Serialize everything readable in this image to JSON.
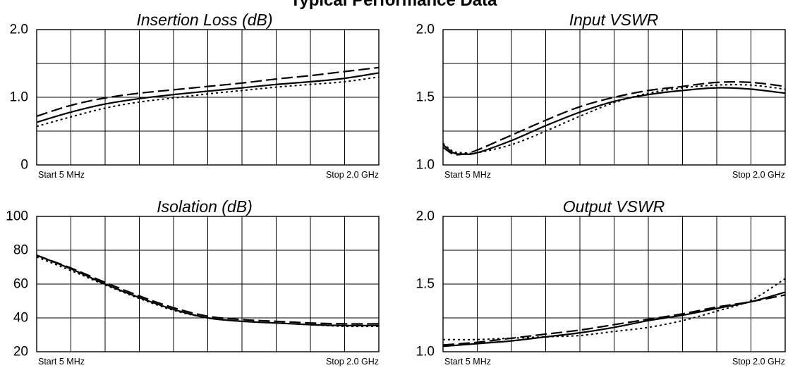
{
  "figure_title": "Typical Performance Data",
  "colors": {
    "background": "#ffffff",
    "grid": "#000000",
    "trace": "#000000"
  },
  "chart_data": [
    {
      "type": "line",
      "title": "Insertion Loss (dB)",
      "ylim": [
        0,
        2.0
      ],
      "yticks": [
        {
          "value": 0,
          "label": "0"
        },
        {
          "value": 1.0,
          "label": "1.0"
        },
        {
          "value": 2.0,
          "label": "2.0"
        }
      ],
      "xlim": [
        0,
        10
      ],
      "x_start_label": "Start 5 MHz",
      "x_stop_label": "Stop 2.0 GHz",
      "grid": true,
      "x": [
        0,
        1,
        2,
        3,
        4,
        5,
        6,
        7,
        8,
        9,
        10
      ],
      "series": [
        {
          "style": "solid",
          "values": [
            0.63,
            0.78,
            0.9,
            0.98,
            1.04,
            1.09,
            1.14,
            1.19,
            1.23,
            1.28,
            1.36
          ]
        },
        {
          "style": "dashed",
          "values": [
            0.72,
            0.88,
            0.99,
            1.06,
            1.11,
            1.16,
            1.21,
            1.27,
            1.32,
            1.38,
            1.44
          ]
        },
        {
          "style": "dotted",
          "values": [
            0.57,
            0.71,
            0.84,
            0.93,
            0.99,
            1.05,
            1.1,
            1.15,
            1.19,
            1.23,
            1.3
          ]
        }
      ]
    },
    {
      "type": "line",
      "title": "Input VSWR",
      "ylim": [
        1.0,
        2.0
      ],
      "yticks": [
        {
          "value": 1.0,
          "label": "1.0"
        },
        {
          "value": 1.5,
          "label": "1.5"
        },
        {
          "value": 2.0,
          "label": "2.0"
        }
      ],
      "xlim": [
        0,
        10
      ],
      "x_start_label": "Start 5 MHz",
      "x_stop_label": "Stop 2.0 GHz",
      "grid": true,
      "x": [
        0,
        0.3,
        0.6,
        1,
        2,
        3,
        4,
        5,
        6,
        7,
        8,
        9,
        10
      ],
      "series": [
        {
          "style": "solid",
          "values": [
            1.15,
            1.09,
            1.08,
            1.09,
            1.18,
            1.29,
            1.39,
            1.47,
            1.52,
            1.55,
            1.57,
            1.56,
            1.53
          ]
        },
        {
          "style": "dashed",
          "values": [
            1.13,
            1.08,
            1.08,
            1.11,
            1.22,
            1.33,
            1.43,
            1.5,
            1.55,
            1.58,
            1.61,
            1.61,
            1.58
          ]
        },
        {
          "style": "dotted",
          "values": [
            1.16,
            1.1,
            1.09,
            1.09,
            1.15,
            1.25,
            1.36,
            1.46,
            1.53,
            1.57,
            1.59,
            1.59,
            1.56
          ]
        }
      ]
    },
    {
      "type": "line",
      "title": "Isolation (dB)",
      "ylim": [
        20,
        100
      ],
      "yticks": [
        {
          "value": 20,
          "label": "20"
        },
        {
          "value": 40,
          "label": "40"
        },
        {
          "value": 60,
          "label": "60"
        },
        {
          "value": 80,
          "label": "80"
        },
        {
          "value": 100,
          "label": "100"
        }
      ],
      "xlim": [
        0,
        10
      ],
      "x_start_label": "Start 5 MHz",
      "x_stop_label": "Stop 2.0 GHz",
      "grid": true,
      "x": [
        0,
        1,
        2,
        3,
        4,
        5,
        6,
        7,
        8,
        9,
        10
      ],
      "series": [
        {
          "style": "solid",
          "values": [
            77,
            69,
            60,
            52,
            45,
            40,
            38,
            37,
            36,
            35.5,
            35.5
          ]
        },
        {
          "style": "dashed",
          "values": [
            77,
            69.5,
            61,
            53,
            46,
            41,
            39,
            38,
            37,
            36.5,
            36.5
          ]
        },
        {
          "style": "dotted",
          "values": [
            76,
            68,
            59.5,
            51.5,
            44.5,
            40,
            38,
            37,
            36,
            35,
            35
          ]
        }
      ]
    },
    {
      "type": "line",
      "title": "Output VSWR",
      "ylim": [
        1.0,
        2.0
      ],
      "yticks": [
        {
          "value": 1.0,
          "label": "1.0"
        },
        {
          "value": 1.5,
          "label": "1.5"
        },
        {
          "value": 2.0,
          "label": "2.0"
        }
      ],
      "xlim": [
        0,
        10
      ],
      "x_start_label": "Start 5 MHz",
      "x_stop_label": "Stop 2.0 GHz",
      "grid": true,
      "x": [
        0,
        1,
        2,
        3,
        4,
        5,
        6,
        7,
        8,
        9,
        10
      ],
      "series": [
        {
          "style": "solid",
          "values": [
            1.04,
            1.06,
            1.08,
            1.11,
            1.14,
            1.18,
            1.23,
            1.27,
            1.32,
            1.37,
            1.44
          ]
        },
        {
          "style": "dashed",
          "values": [
            1.05,
            1.07,
            1.1,
            1.13,
            1.16,
            1.2,
            1.24,
            1.28,
            1.33,
            1.37,
            1.42
          ]
        },
        {
          "style": "dotted",
          "values": [
            1.09,
            1.09,
            1.1,
            1.11,
            1.12,
            1.15,
            1.18,
            1.23,
            1.3,
            1.38,
            1.54
          ]
        }
      ]
    }
  ]
}
